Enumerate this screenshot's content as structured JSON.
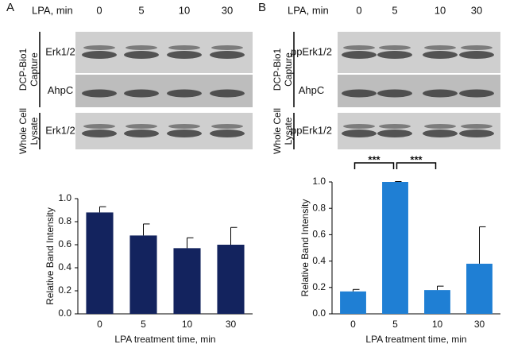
{
  "blots": [
    {
      "panel": "A",
      "header": "LPA, min",
      "lanes": [
        "0",
        "5",
        "10",
        "30"
      ],
      "groups": [
        {
          "label": [
            "DCP-Bio1",
            "Capture"
          ],
          "rows": [
            "Erk1/2",
            "AhpC"
          ]
        },
        {
          "label": [
            "Whole Cell",
            "Lysate"
          ],
          "rows": [
            "Erk1/2"
          ]
        }
      ]
    },
    {
      "panel": "B",
      "header": "LPA, min",
      "lanes": [
        "0",
        "5",
        "10",
        "30"
      ],
      "groups": [
        {
          "label": [
            "DCP-Bio1",
            "Capture"
          ],
          "rows": [
            "ppErk1/2",
            "AhpC"
          ]
        },
        {
          "label": [
            "Whole Cell",
            "Lysate"
          ],
          "rows": [
            "ppErk1/2"
          ]
        }
      ]
    }
  ],
  "chart_data": [
    {
      "type": "bar",
      "ylabel": "Relative Band Intensity",
      "xlabel": "LPA treatment time, min",
      "categories": [
        "0",
        "5",
        "10",
        "30"
      ],
      "values": [
        0.88,
        0.68,
        0.57,
        0.6
      ],
      "errors": [
        0.05,
        0.1,
        0.09,
        0.15
      ],
      "color": "#13235e",
      "ylim": [
        0,
        1
      ],
      "yticks": [
        {
          "value": 0,
          "label": "0.0"
        },
        0.2,
        0.4,
        0.6,
        0.8,
        {
          "value": 1,
          "label": "1.0"
        }
      ]
    },
    {
      "type": "bar",
      "ylabel": "Relative Band Intensity",
      "xlabel": "LPA treatment time, min",
      "categories": [
        "0",
        "5",
        "10",
        "30"
      ],
      "values": [
        0.17,
        1.0,
        0.18,
        0.38
      ],
      "errors": [
        0.015,
        0.003,
        0.03,
        0.28
      ],
      "color": "#1f7fd4",
      "ylim": [
        0,
        1
      ],
      "yticks": [
        {
          "value": 0,
          "label": "0.0"
        },
        0.2,
        0.4,
        0.6,
        0.8,
        {
          "value": 1,
          "label": "1.0"
        }
      ],
      "annotations": [
        "***",
        "***"
      ]
    }
  ]
}
